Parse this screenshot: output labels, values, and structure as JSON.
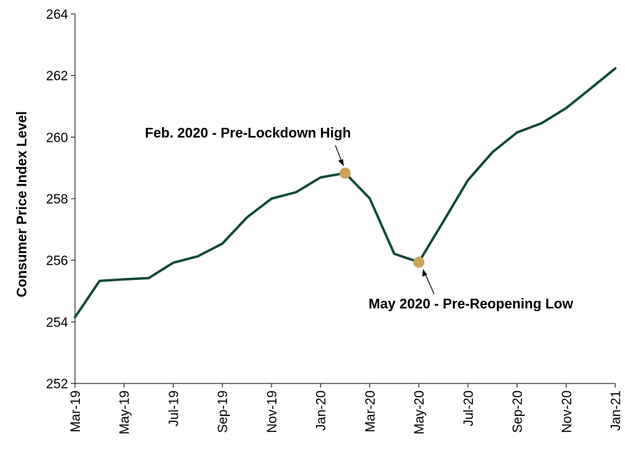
{
  "chart_data": {
    "type": "line",
    "title": "",
    "xlabel": "",
    "ylabel": "Consumer Price Index Level",
    "ylim": [
      252,
      264
    ],
    "yticks": [
      252,
      254,
      256,
      258,
      260,
      262,
      264
    ],
    "x": [
      "2019-03",
      "2019-04",
      "2019-05",
      "2019-06",
      "2019-07",
      "2019-08",
      "2019-09",
      "2019-10",
      "2019-11",
      "2019-12",
      "2020-01",
      "2020-02",
      "2020-03",
      "2020-04",
      "2020-05",
      "2020-06",
      "2020-07",
      "2020-08",
      "2020-09",
      "2020-10",
      "2020-11",
      "2020-12",
      "2021-01"
    ],
    "xtick_labels": [
      "Mar-19",
      "May-19",
      "Jul-19",
      "Sep-19",
      "Nov-19",
      "Jan-20",
      "Mar-20",
      "May-20",
      "Jul-20",
      "Sep-20",
      "Nov-20",
      "Jan-21"
    ],
    "series": [
      {
        "name": "",
        "color": "#0d4a36",
        "values": [
          254.15,
          255.33,
          255.38,
          255.42,
          255.92,
          256.13,
          256.54,
          257.39,
          258.0,
          258.21,
          258.69,
          258.83,
          258.01,
          256.21,
          255.94,
          257.26,
          258.6,
          259.51,
          260.15,
          260.45,
          260.94,
          261.58,
          262.23
        ]
      }
    ],
    "markers": [
      {
        "x": "2020-02",
        "value": 258.83,
        "color": "#c9a35b"
      },
      {
        "x": "2020-05",
        "value": 255.94,
        "color": "#c9a35b"
      }
    ],
    "annotations": [
      {
        "text": "Feb. 2020 - Pre-Lockdown High",
        "target": "2020-02"
      },
      {
        "text": "May 2020 - Pre-Reopening Low",
        "target": "2020-05"
      }
    ],
    "grid": false,
    "legend": "none"
  }
}
